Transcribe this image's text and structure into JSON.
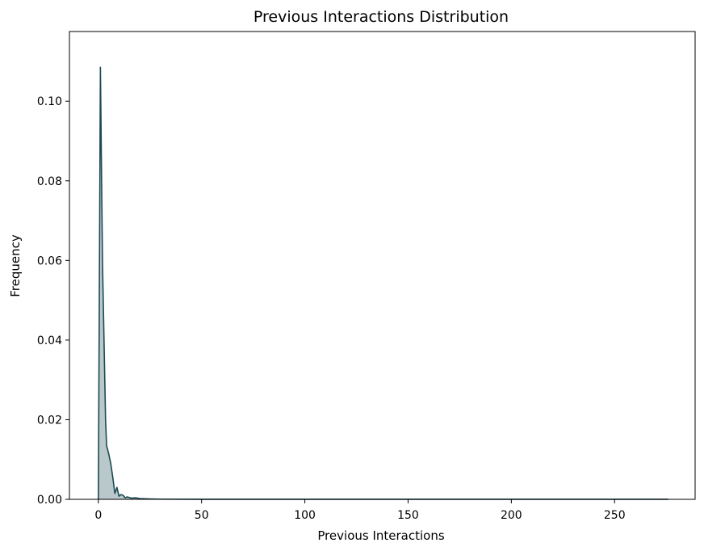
{
  "chart_data": {
    "type": "area",
    "title": "Previous Interactions Distribution",
    "xlabel": "Previous Interactions",
    "ylabel": "Frequency",
    "xlim": [
      -14,
      289
    ],
    "ylim": [
      0,
      0.1175
    ],
    "xticks": [
      0,
      50,
      100,
      150,
      200,
      250
    ],
    "xtick_labels": [
      "0",
      "50",
      "100",
      "150",
      "200",
      "250"
    ],
    "yticks": [
      0,
      0.02,
      0.04,
      0.06,
      0.08,
      0.1
    ],
    "ytick_labels": [
      "0.00",
      "0.02",
      "0.04",
      "0.06",
      "0.08",
      "0.10"
    ],
    "grid": false,
    "legend": "none",
    "colors": {
      "line": "#1c4a52",
      "fill": "#b9c8ca"
    },
    "series": [
      {
        "x": [
          0,
          1,
          2,
          3.5,
          4,
          5,
          6,
          7,
          8,
          9,
          10,
          11,
          12,
          13,
          14,
          16,
          18,
          20,
          25,
          30,
          50,
          100,
          150,
          200,
          250,
          276
        ],
        "values": [
          0.0,
          0.1085,
          0.06,
          0.02,
          0.0135,
          0.0115,
          0.009,
          0.0055,
          0.0015,
          0.003,
          0.0008,
          0.0012,
          0.001,
          0.0004,
          0.0006,
          0.0003,
          0.0004,
          0.0002,
          0.0001,
          5e-05,
          2e-05,
          2e-05,
          2e-05,
          2e-05,
          2e-05,
          2e-05
        ]
      }
    ]
  }
}
